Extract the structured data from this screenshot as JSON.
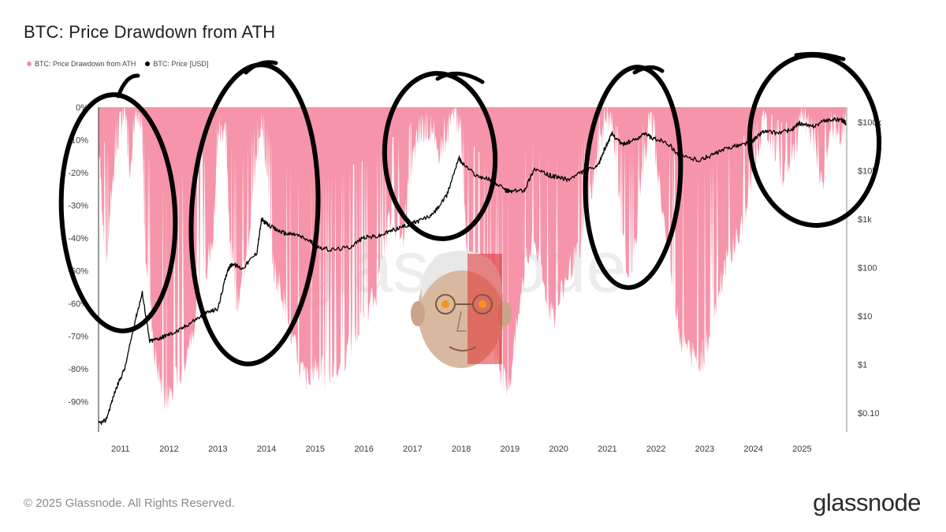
{
  "title": "BTC: Price Drawdown from ATH",
  "legend": [
    {
      "label": "BTC: Price Drawdown from ATH",
      "color": "#f58ba2"
    },
    {
      "label": "BTC: Price [USD]",
      "color": "#000000"
    }
  ],
  "footer": {
    "copyright": "© 2025 Glassnode. All Rights Reserved.",
    "brand": "glassnode",
    "watermark": "glassnode"
  },
  "colors": {
    "drawdown": "#f58ba2",
    "price": "#000000",
    "annotation": "#000000"
  },
  "chart_data": {
    "type": "area",
    "title": "BTC: Price Drawdown from ATH",
    "x_ticks": [
      "2011",
      "2012",
      "2013",
      "2014",
      "2015",
      "2016",
      "2017",
      "2018",
      "2019",
      "2020",
      "2021",
      "2022",
      "2023",
      "2024",
      "2025"
    ],
    "y_left_ticks": [
      "0%",
      "-10%",
      "-20%",
      "-30%",
      "-40%",
      "-50%",
      "-60%",
      "-70%",
      "-80%",
      "-90%"
    ],
    "y_left_range": [
      -100,
      0
    ],
    "y_right_ticks": [
      "$100k",
      "$10k",
      "$1k",
      "$100",
      "$10",
      "$1",
      "$0.10"
    ],
    "y_right_scale": "log",
    "x_range": [
      2010.55,
      2025.9
    ],
    "series": [
      {
        "name": "BTC: Price Drawdown from ATH",
        "type": "area",
        "unit": "%",
        "x": [
          2010.55,
          2010.7,
          2010.85,
          2011.0,
          2011.1,
          2011.2,
          2011.3,
          2011.45,
          2011.5,
          2011.7,
          2011.9,
          2012.0,
          2012.3,
          2012.6,
          2012.9,
          2013.0,
          2013.15,
          2013.25,
          2013.4,
          2013.6,
          2013.8,
          2013.9,
          2014.0,
          2014.15,
          2014.3,
          2014.5,
          2014.7,
          2014.9,
          2015.0,
          2015.2,
          2015.5,
          2015.8,
          2016.0,
          2016.3,
          2016.5,
          2016.8,
          2016.95,
          2017.1,
          2017.3,
          2017.5,
          2017.7,
          2017.9,
          2018.0,
          2018.1,
          2018.3,
          2018.5,
          2018.7,
          2018.9,
          2019.0,
          2019.3,
          2019.5,
          2019.7,
          2019.9,
          2020.2,
          2020.4,
          2020.6,
          2020.8,
          2020.95,
          2021.1,
          2021.3,
          2021.5,
          2021.7,
          2021.9,
          2022.0,
          2022.3,
          2022.5,
          2022.7,
          2022.9,
          2023.0,
          2023.3,
          2023.5,
          2023.8,
          2024.0,
          2024.2,
          2024.4,
          2024.6,
          2024.8,
          2025.0,
          2025.2,
          2025.4,
          2025.6,
          2025.8,
          2025.9
        ],
        "values": [
          -10,
          -50,
          -20,
          -5,
          -2,
          -20,
          -2,
          -10,
          -40,
          -75,
          -90,
          -88,
          -78,
          -60,
          -40,
          -10,
          -5,
          -40,
          -60,
          -45,
          -15,
          -2,
          -20,
          -50,
          -55,
          -70,
          -80,
          -85,
          -78,
          -82,
          -80,
          -70,
          -65,
          -55,
          -35,
          -40,
          -20,
          -10,
          -5,
          -15,
          -8,
          -2,
          -10,
          -40,
          -50,
          -65,
          -75,
          -85,
          -83,
          -50,
          -40,
          -55,
          -65,
          -50,
          -45,
          -30,
          -15,
          -3,
          -5,
          -40,
          -55,
          -20,
          -3,
          -15,
          -50,
          -70,
          -75,
          -77,
          -75,
          -55,
          -45,
          -35,
          -20,
          -5,
          -10,
          -20,
          -15,
          -3,
          -8,
          -25,
          -5,
          -10,
          -3
        ]
      },
      {
        "name": "BTC: Price [USD]",
        "type": "line",
        "unit": "USD",
        "x": [
          2010.55,
          2010.7,
          2010.9,
          2011.1,
          2011.3,
          2011.45,
          2011.6,
          2011.8,
          2011.95,
          2012.2,
          2012.5,
          2012.8,
          2013.0,
          2013.2,
          2013.3,
          2013.5,
          2013.8,
          2013.9,
          2014.0,
          2014.2,
          2014.4,
          2014.6,
          2014.9,
          2015.0,
          2015.3,
          2015.7,
          2016.0,
          2016.3,
          2016.6,
          2016.9,
          2017.1,
          2017.4,
          2017.7,
          2017.95,
          2018.0,
          2018.3,
          2018.6,
          2018.9,
          2019.0,
          2019.3,
          2019.5,
          2019.8,
          2020.0,
          2020.2,
          2020.5,
          2020.8,
          2020.95,
          2021.1,
          2021.3,
          2021.5,
          2021.8,
          2021.9,
          2022.2,
          2022.5,
          2022.9,
          2023.2,
          2023.5,
          2023.8,
          2024.0,
          2024.2,
          2024.5,
          2024.8,
          2024.95,
          2025.2,
          2025.5,
          2025.8,
          2025.9
        ],
        "values": [
          0.06,
          0.07,
          0.3,
          0.9,
          8,
          30,
          3,
          3.5,
          4,
          5,
          8,
          12,
          14,
          90,
          120,
          95,
          200,
          1000,
          800,
          600,
          500,
          480,
          350,
          280,
          230,
          260,
          420,
          440,
          600,
          750,
          900,
          1200,
          3000,
          19000,
          15000,
          8000,
          6500,
          4000,
          3700,
          4000,
          11000,
          8000,
          7200,
          6500,
          9500,
          12000,
          29000,
          58000,
          35000,
          40000,
          60000,
          47000,
          40000,
          20000,
          16500,
          22000,
          30000,
          35000,
          42000,
          65000,
          60000,
          70000,
          95000,
          80000,
          110000,
          115000,
          95000
        ]
      }
    ]
  }
}
